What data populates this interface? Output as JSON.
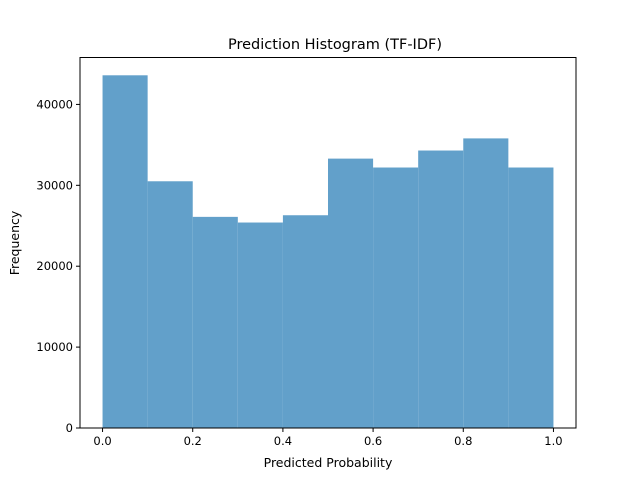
{
  "chart_data": {
    "type": "bar",
    "title": "Prediction Histogram (TF-IDF)",
    "xlabel": "Predicted Probability",
    "ylabel": "Frequency",
    "bin_edges": [
      0.0,
      0.1,
      0.2,
      0.3,
      0.4,
      0.5,
      0.6,
      0.7,
      0.8,
      0.9,
      1.0
    ],
    "values": [
      43600,
      30500,
      26100,
      25400,
      26300,
      33300,
      32200,
      34300,
      35800,
      32200
    ],
    "xlim": [
      -0.05,
      1.05
    ],
    "ylim": [
      0,
      45800
    ],
    "xticks": [
      0.0,
      0.2,
      0.4,
      0.6,
      0.8,
      1.0
    ],
    "xtick_labels": [
      "0.0",
      "0.2",
      "0.4",
      "0.6",
      "0.8",
      "1.0"
    ],
    "yticks": [
      0,
      10000,
      20000,
      30000,
      40000
    ],
    "ytick_labels": [
      "0",
      "10000",
      "20000",
      "30000",
      "40000"
    ],
    "bar_color": "#62a0ca",
    "grid": false,
    "legend": false
  }
}
